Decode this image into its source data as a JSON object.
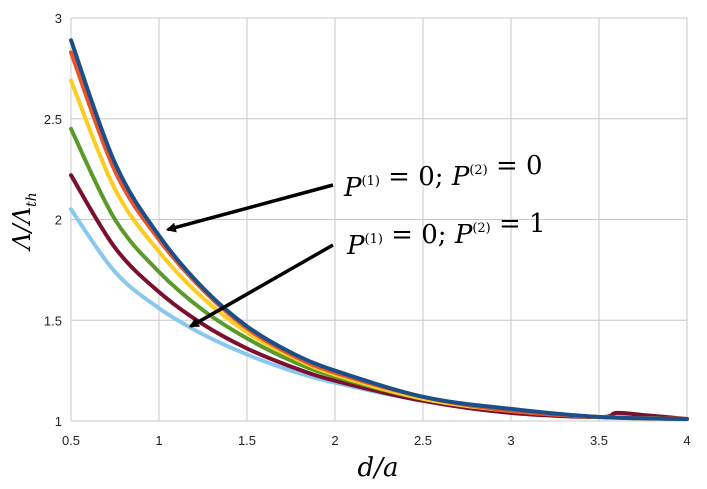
{
  "chart_data": {
    "type": "line",
    "xlabel": "d/a",
    "ylabel": "Λ/Λth",
    "xlim": [
      0.5,
      4
    ],
    "ylim": [
      1,
      3
    ],
    "grid": true,
    "x_ticks": [
      "0.5",
      "1",
      "1.5",
      "2",
      "2.5",
      "3",
      "3.5",
      "4"
    ],
    "y_ticks": [
      "1",
      "1.5",
      "2",
      "2.5",
      "3"
    ],
    "series": [
      {
        "color": "#1a4f8a",
        "x": [
          0.5,
          0.75,
          1.0,
          1.25,
          1.5,
          1.75,
          2.0,
          2.5,
          3.0,
          3.5,
          4.0
        ],
        "y": [
          2.89,
          2.28,
          1.92,
          1.66,
          1.47,
          1.34,
          1.25,
          1.12,
          1.06,
          1.02,
          1.01
        ]
      },
      {
        "color": "#e8542a",
        "x": [
          0.5,
          0.75,
          1.0,
          1.25,
          1.5,
          1.75,
          2.0,
          2.5,
          3.0,
          3.5,
          4.0
        ],
        "y": [
          2.83,
          2.24,
          1.9,
          1.65,
          1.46,
          1.33,
          1.24,
          1.12,
          1.05,
          1.02,
          1.01
        ]
      },
      {
        "color": "#ffcc22",
        "x": [
          0.5,
          0.75,
          1.0,
          1.25,
          1.5,
          1.75,
          2.0,
          2.5,
          3.0,
          3.5,
          4.0
        ],
        "y": [
          2.69,
          2.15,
          1.84,
          1.61,
          1.44,
          1.32,
          1.23,
          1.11,
          1.05,
          1.02,
          1.01
        ]
      },
      {
        "color": "#5a9a2a",
        "x": [
          0.5,
          0.75,
          1.0,
          1.25,
          1.5,
          1.75,
          2.0,
          2.5,
          3.0,
          3.5,
          4.0
        ],
        "y": [
          2.45,
          2.0,
          1.74,
          1.55,
          1.41,
          1.3,
          1.22,
          1.11,
          1.05,
          1.02,
          1.01
        ]
      },
      {
        "color": "#7a0f2e",
        "x": [
          0.5,
          0.75,
          1.0,
          1.25,
          1.5,
          1.75,
          2.0,
          2.5,
          3.0,
          3.5,
          3.6,
          3.75,
          4.0
        ],
        "y": [
          2.22,
          1.86,
          1.64,
          1.48,
          1.36,
          1.27,
          1.2,
          1.1,
          1.04,
          1.02,
          1.04,
          1.03,
          1.01
        ]
      },
      {
        "color": "#88c8f0",
        "x": [
          0.5,
          0.75,
          1.0,
          1.25,
          1.5,
          1.75,
          2.0,
          2.5,
          3.0,
          3.5,
          3.8
        ],
        "y": [
          2.05,
          1.74,
          1.56,
          1.43,
          1.33,
          1.25,
          1.19,
          1.1,
          1.04,
          1.02,
          1.02
        ]
      }
    ],
    "annotations": [
      {
        "text_main": "P",
        "sup1": "(1)",
        "mid": " = 0; ",
        "text_main2": "P",
        "sup2": "(2)",
        "end": " = 0",
        "arrow_to": {
          "x": 1.05,
          "y": 1.95
        }
      },
      {
        "text_main": "P",
        "sup1": "(1)",
        "mid": " = 0; ",
        "text_main2": "P",
        "sup2": "(2)",
        "end": " = 1",
        "arrow_to": {
          "x": 1.18,
          "y": 1.47
        }
      }
    ]
  }
}
